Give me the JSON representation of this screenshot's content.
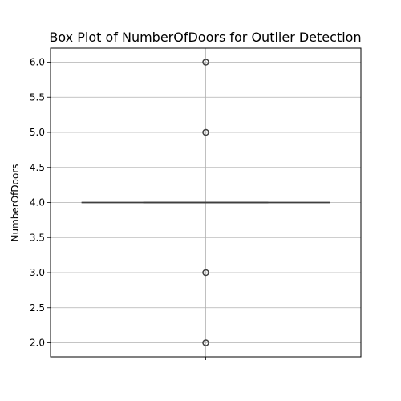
{
  "chart_data": {
    "type": "box",
    "title": "Box Plot of NumberOfDoors for Outlier Detection",
    "xlabel": "",
    "ylabel": "NumberOfDoors",
    "ylim": [
      1.8,
      6.2
    ],
    "yticks": [
      2.0,
      2.5,
      3.0,
      3.5,
      4.0,
      4.5,
      5.0,
      5.5,
      6.0
    ],
    "ytick_labels": [
      "2.0",
      "2.5",
      "3.0",
      "3.5",
      "4.0",
      "4.5",
      "5.0",
      "5.5",
      "6.0"
    ],
    "grid": true,
    "box": {
      "q1": 4.0,
      "median": 4.0,
      "q3": 4.0,
      "whisker_low": 4.0,
      "whisker_high": 4.0
    },
    "outliers": [
      2.0,
      3.0,
      5.0,
      6.0
    ],
    "colors": {
      "box_line": "#3f3f3f",
      "grid": "#b0b0b0",
      "outlier_edge": "#3f3f3f"
    }
  }
}
